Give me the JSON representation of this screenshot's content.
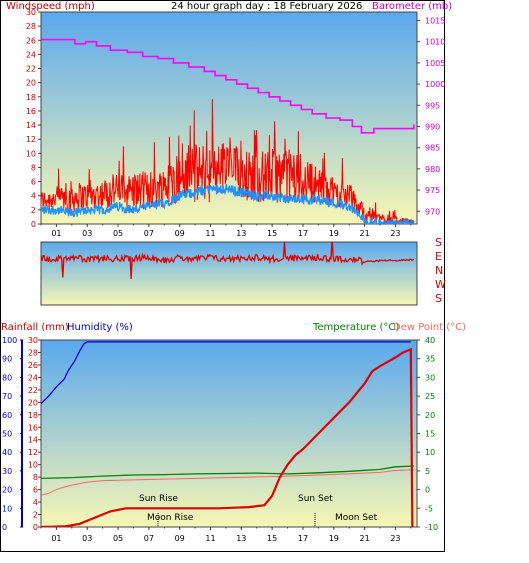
{
  "header": {
    "windspeed_label": "Windspeed (mph)",
    "title": "24 hour graph day : 18 February 2026",
    "barometer_label": "Barometer (mb)"
  },
  "direction_letters": [
    "S",
    "E",
    "N",
    "W",
    "S"
  ],
  "lower_header": {
    "rainfall_label": "Rainfall (mm)",
    "humidity_label": "Humidity (%)",
    "temperature_label": "Temperature (°C)",
    "dewpoint_label": "Dew Point (°C)"
  },
  "annotations": {
    "sun_rise": "Sun Rise",
    "sun_set": "Sun Set",
    "moon_rise": "Moon Rise",
    "moon_set": "Moon Set"
  },
  "colors": {
    "wind_gust": "#ff0000",
    "wind_avg": "#1e90ff",
    "barometer": "#ff00ff",
    "direction": "#e00000",
    "rainfall": "#e00000",
    "humidity": "#0000cc",
    "temperature": "#008000",
    "dewpoint": "#ff6666",
    "sky_top": "#5aa8ee",
    "sky_bottom": "#f7f7b4"
  },
  "chart_data": [
    {
      "type": "line",
      "x_ticks": [
        "01",
        "03",
        "05",
        "07",
        "09",
        "11",
        "13",
        "15",
        "17",
        "19",
        "21",
        "23"
      ],
      "xlim_hours": [
        0,
        24.4
      ],
      "y_left_ticks": [
        "0",
        "2",
        "4",
        "6",
        "8",
        "10",
        "12",
        "14",
        "16",
        "18",
        "20",
        "22",
        "24",
        "26",
        "28",
        "30"
      ],
      "y_left_range": [
        0,
        30
      ],
      "y_right_ticks": [
        "970",
        "975",
        "980",
        "985",
        "990",
        "995",
        "1000",
        "1005",
        "1010",
        "1015"
      ],
      "y_right_range": [
        967,
        1017
      ],
      "series": [
        {
          "name": "Windspeed (mph)",
          "kind": "gust",
          "axis": "left",
          "x": [
            0,
            1,
            2,
            3,
            4,
            5,
            6,
            7,
            8,
            9,
            10,
            11,
            12,
            13,
            14,
            15,
            16,
            17,
            18,
            19,
            20,
            21,
            22,
            23,
            24.2
          ],
          "low": [
            2,
            2,
            1.5,
            2,
            2,
            2.5,
            2,
            2,
            2.5,
            3,
            3,
            3,
            4,
            3.5,
            3,
            3,
            3,
            3,
            3,
            2.5,
            2,
            0,
            0,
            0,
            0
          ],
          "high": [
            7,
            8,
            10,
            9,
            10,
            11,
            12,
            12,
            13,
            15,
            18,
            19,
            18,
            17,
            16,
            17,
            17,
            16,
            12,
            10,
            9,
            5,
            3,
            2,
            1
          ]
        },
        {
          "name": "Windspeed (mph)",
          "kind": "average",
          "axis": "left",
          "x": [
            0,
            1,
            2,
            3,
            4,
            5,
            6,
            7,
            8,
            9,
            10,
            11,
            12,
            13,
            14,
            15,
            16,
            17,
            18,
            19,
            20,
            21,
            22,
            23,
            24.2
          ],
          "y": [
            2,
            2,
            1.5,
            2,
            2,
            2.5,
            2,
            2.5,
            3,
            4,
            4.5,
            5,
            5,
            4.5,
            4,
            4,
            3.5,
            3.5,
            3.5,
            3,
            2.5,
            0.5,
            0,
            0,
            0
          ]
        },
        {
          "name": "Barometer (mb)",
          "axis": "right",
          "x": [
            0,
            1.5,
            2.2,
            2.9,
            3.6,
            4.5,
            5.6,
            6.6,
            7.6,
            8.6,
            9.6,
            10.6,
            11.3,
            12.0,
            12.7,
            13.4,
            14.1,
            14.8,
            15.5,
            16.2,
            16.9,
            17.6,
            18.5,
            19.4,
            20.2,
            20.8,
            21.6,
            22.5,
            23.6,
            24.2
          ],
          "y": [
            1010.5,
            1010.5,
            1009.5,
            1010,
            1009,
            1008,
            1007.5,
            1006.5,
            1006,
            1005,
            1004,
            1003,
            1002,
            1001,
            1000,
            999,
            998,
            997,
            996,
            995,
            994,
            993,
            992,
            991.5,
            990,
            988.5,
            989.5,
            989.5,
            989.5,
            990.5
          ]
        }
      ]
    },
    {
      "type": "line",
      "title": "Wind direction",
      "y_ticks": [
        "S",
        "E",
        "N",
        "W",
        "S"
      ],
      "xlim_hours": [
        0,
        24.4
      ],
      "series": [
        {
          "name": "Wind direction",
          "y_deg": [
            210,
            215,
            205,
            220,
            210,
            215,
            212,
            205,
            218,
            210,
            214,
            208,
            215,
            210,
            207,
            215,
            212,
            210,
            208,
            214,
            212,
            225,
            222,
            220,
            218
          ]
        }
      ]
    },
    {
      "type": "line",
      "x_ticks": [
        "01",
        "03",
        "05",
        "07",
        "09",
        "11",
        "13",
        "15",
        "17",
        "19",
        "21",
        "23"
      ],
      "xlim_hours": [
        0,
        24.4
      ],
      "humidity_ticks": [
        "0",
        "10",
        "20",
        "30",
        "40",
        "50",
        "60",
        "70",
        "80",
        "90",
        "100"
      ],
      "humidity_range": [
        0,
        100
      ],
      "rainfall_ticks": [
        "0",
        "2",
        "4",
        "6",
        "8",
        "10",
        "12",
        "14",
        "16",
        "18",
        "20",
        "22",
        "24",
        "26",
        "28",
        "30"
      ],
      "rainfall_range": [
        0,
        30
      ],
      "temperature_ticks": [
        "-10",
        "-5",
        "0",
        "5",
        "10",
        "15",
        "20",
        "25",
        "30",
        "35",
        "40"
      ],
      "temperature_range": [
        -10,
        40
      ],
      "series": [
        {
          "name": "Humidity (%)",
          "axis": "humidity",
          "x": [
            0,
            0.5,
            1,
            1.5,
            1.8,
            2.2,
            2.5,
            2.8,
            3.0,
            24
          ],
          "y": [
            66,
            70,
            75,
            79,
            84,
            89,
            94,
            98,
            99,
            99
          ]
        },
        {
          "name": "Rainfall (mm)",
          "axis": "rainfall",
          "x": [
            0,
            1.5,
            2.5,
            3.5,
            4.5,
            5.5,
            6.5,
            7.5,
            8.5,
            9.5,
            10.5,
            11.5,
            12.5,
            13.5,
            14.5,
            15,
            15.5,
            16,
            16.5,
            17,
            18,
            19,
            20,
            21,
            21.5,
            22,
            22.5,
            23,
            23.5,
            24,
            24.1
          ],
          "y": [
            0,
            0.1,
            0.5,
            1.5,
            2.5,
            3,
            3,
            3,
            3,
            3,
            3,
            3,
            3.1,
            3.2,
            3.5,
            5,
            8,
            10,
            11.5,
            12.5,
            15,
            17.5,
            20,
            23,
            25,
            25.8,
            26.5,
            27.2,
            28,
            28.5,
            0
          ]
        },
        {
          "name": "Temperature (°C)",
          "axis": "temperature",
          "x": [
            0,
            2,
            4,
            6,
            8,
            10,
            12,
            14,
            16,
            18,
            20,
            22,
            23,
            24.2
          ],
          "y": [
            3,
            3.2,
            3.6,
            3.9,
            4,
            4.2,
            4.3,
            4.4,
            4.2,
            4.5,
            4.9,
            5.4,
            6.1,
            6.3
          ]
        },
        {
          "name": "Dew Point (°C)",
          "axis": "temperature",
          "x": [
            0,
            0.5,
            1,
            1.5,
            2,
            3,
            4,
            6,
            8,
            10,
            12,
            14,
            16,
            18,
            20,
            22,
            23,
            24.2
          ],
          "y": [
            -1.5,
            -1,
            0,
            0.7,
            1.2,
            2,
            2.4,
            2.6,
            2.8,
            3.0,
            3.2,
            3.4,
            3.6,
            3.9,
            4.2,
            4.6,
            5.1,
            5.3
          ]
        }
      ]
    }
  ]
}
